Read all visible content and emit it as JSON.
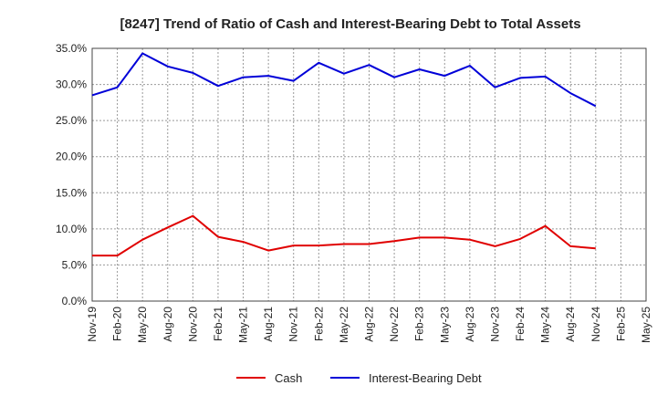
{
  "chart_data": {
    "type": "line",
    "title": "[8247]  Trend of Ratio of Cash and Interest-Bearing Debt to Total Assets",
    "xlabel": "",
    "ylabel": "",
    "ylim": [
      0,
      35
    ],
    "y_ticks": [
      0,
      5,
      10,
      15,
      20,
      25,
      30,
      35
    ],
    "y_tick_labels": [
      "0.0%",
      "5.0%",
      "10.0%",
      "15.0%",
      "20.0%",
      "25.0%",
      "30.0%",
      "35.0%"
    ],
    "categories": [
      "Nov-19",
      "Feb-20",
      "May-20",
      "Aug-20",
      "Nov-20",
      "Feb-21",
      "May-21",
      "Aug-21",
      "Nov-21",
      "Feb-22",
      "May-22",
      "Aug-22",
      "Nov-22",
      "Feb-23",
      "May-23",
      "Aug-23",
      "Nov-23",
      "Feb-24",
      "May-24",
      "Aug-24",
      "Nov-24",
      "Feb-25",
      "May-25"
    ],
    "grid": true,
    "legend_position": "bottom-center",
    "series": [
      {
        "name": "Cash",
        "color": "#e00000",
        "values": [
          6.3,
          6.3,
          8.5,
          10.2,
          11.8,
          8.9,
          8.2,
          7.0,
          7.7,
          7.7,
          7.9,
          7.9,
          8.3,
          8.8,
          8.8,
          8.5,
          7.6,
          8.6,
          10.4,
          7.6,
          7.3,
          null,
          null
        ]
      },
      {
        "name": "Interest-Bearing Debt",
        "color": "#0000d8",
        "values": [
          28.5,
          29.6,
          34.3,
          32.5,
          31.6,
          29.8,
          31.0,
          31.2,
          30.5,
          33.0,
          31.5,
          32.7,
          31.0,
          32.1,
          31.2,
          32.6,
          29.6,
          30.9,
          31.1,
          28.8,
          27.0,
          null,
          null
        ]
      }
    ]
  }
}
